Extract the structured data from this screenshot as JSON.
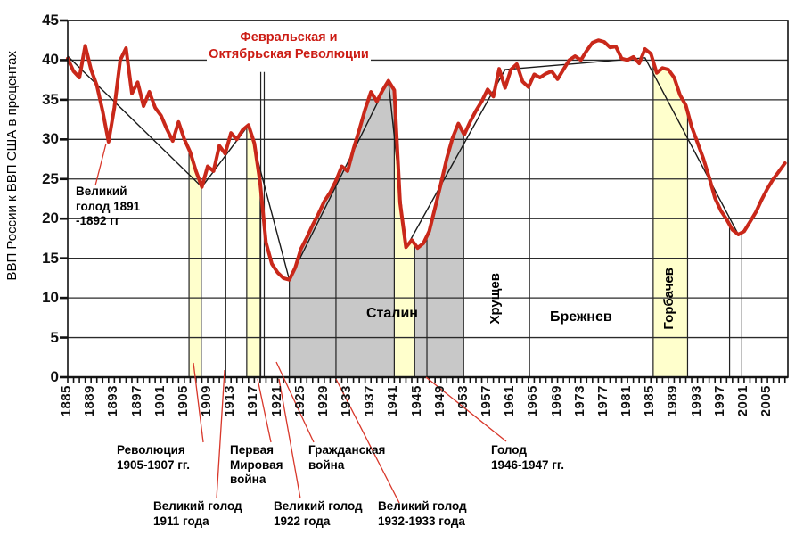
{
  "chart_data": {
    "type": "line",
    "title": "",
    "ylabel": "ВВП России к ВВП США в процентах",
    "ylim": [
      0,
      45
    ],
    "y_tick_step": 5,
    "xlim": [
      1885,
      2008.5
    ],
    "grid": "horizontal-only",
    "x_label_years": [
      1885,
      1889,
      1893,
      1897,
      1901,
      1905,
      1909,
      1913,
      1917,
      1921,
      1925,
      1929,
      1933,
      1937,
      1941,
      1945,
      1949,
      1953,
      1957,
      1961,
      1965,
      1969,
      1973,
      1977,
      1981,
      1985,
      1989,
      1993,
      1997,
      2001,
      2005
    ],
    "series": [
      {
        "name": "ВВП России к ВВП США, %",
        "color": "#c9281a",
        "start_year": 1885,
        "values": [
          40.2,
          38.6,
          37.8,
          41.8,
          38.8,
          36.8,
          33.5,
          29.7,
          34.0,
          40.0,
          41.5,
          35.8,
          37.2,
          34.2,
          36.0,
          34.0,
          33.0,
          31.3,
          29.8,
          32.2,
          30.0,
          28.4,
          26.0,
          24.0,
          26.6,
          26.0,
          29.2,
          28.2,
          30.8,
          30.0,
          31.2,
          31.8,
          29.5,
          24.5,
          17.0,
          14.3,
          13.2,
          12.5,
          12.3,
          13.8,
          16.2,
          17.6,
          19.2,
          20.6,
          22.2,
          23.3,
          24.8,
          26.6,
          26.0,
          28.8,
          31.2,
          33.8,
          36.0,
          34.8,
          36.2,
          37.4,
          36.2,
          22.0,
          16.4,
          17.3,
          16.3,
          16.9,
          18.4,
          21.4,
          24.4,
          27.6,
          30.2,
          32.0,
          30.6,
          32.2,
          33.6,
          34.8,
          36.3,
          35.4,
          38.9,
          36.5,
          38.8,
          39.5,
          37.3,
          36.6,
          38.2,
          37.8,
          38.3,
          38.6,
          37.6,
          38.8,
          40.0,
          40.5,
          40.0,
          41.2,
          42.2,
          42.5,
          42.3,
          41.6,
          41.7,
          40.2,
          40.0,
          40.4,
          39.6,
          41.4,
          40.8,
          38.4,
          39.0,
          38.8,
          37.8,
          35.6,
          34.3,
          31.6,
          29.6,
          27.6,
          25.2,
          22.6,
          21.0,
          19.9,
          18.6,
          18.0,
          18.4,
          19.6,
          20.8,
          22.4,
          23.8,
          25.0,
          26.0,
          27.0
        ]
      }
    ],
    "trend_line": {
      "color": "#1a1a1a",
      "points": [
        [
          1885,
          40.5
        ],
        [
          1908,
          24.0
        ],
        [
          1916,
          31.8
        ],
        [
          1923,
          12.3
        ],
        [
          1940,
          37.4
        ],
        [
          1943,
          16.3
        ],
        [
          1960,
          38.8
        ],
        [
          1984,
          40.3
        ],
        [
          2000,
          18.0
        ]
      ]
    },
    "bands": [
      {
        "id": "revolution-1905-band",
        "from": 1905.8,
        "to": 1907.9,
        "color": "#ffffcc"
      },
      {
        "id": "wwi-band",
        "from": 1915.7,
        "to": 1918.0,
        "color": "#ffffcc"
      },
      {
        "id": "stalin-era-band",
        "from": 1923.0,
        "to": 1952.9,
        "color": "#c8c8c8"
      },
      {
        "id": "wwii-band",
        "from": 1941.0,
        "to": 1944.5,
        "color": "#ffffcc"
      },
      {
        "id": "gorbachev-era-band",
        "from": 1985.4,
        "to": 1991.3,
        "color": "#ffffcc"
      }
    ],
    "event_lines": [
      {
        "id": "famine-1911-line",
        "year": 1912.1
      },
      {
        "id": "february-revolution-line",
        "year": 1918.1,
        "top": 38.5
      },
      {
        "id": "october-revolution-line",
        "year": 1918.7,
        "top": 38.5
      },
      {
        "id": "famine-1932-line",
        "year": 1931.0
      },
      {
        "id": "famine-1946-line",
        "year": 1946.6
      },
      {
        "id": "khrushchev-brezhnev-line",
        "year": 1964.2
      },
      {
        "id": "crisis-1998-line",
        "year": 1998.5
      },
      {
        "id": "year-2000-line",
        "year": 2000.6
      }
    ],
    "axis_color": "#111111",
    "grid_color": "#2a2a2a"
  },
  "annotations": {
    "revolutions": {
      "line1": "Февральская и",
      "line2": "Октябрьская Революции",
      "color": "#cc1c14"
    },
    "famine_1891": "Великий\nголод 1891\n-1892 гг",
    "revolution_1905": "Революция\n1905-1907 гг.",
    "wwi": "Первая\nМировая\nвойна",
    "civil_war": "Гражданская\nвойна",
    "famine_1911": "Великий голод\n1911 года",
    "famine_1922": "Великий голод\n1922 года",
    "famine_1932": "Великий голод\n1932-1933 года",
    "famine_1946": "Голод\n1946-1947 гг.",
    "leader_color": "#d8372a"
  },
  "eras": {
    "stalin": "Сталин",
    "khrushchev": "Хрущев",
    "brezhnev": "Брежнев",
    "gorbachev": "Горбачев"
  }
}
